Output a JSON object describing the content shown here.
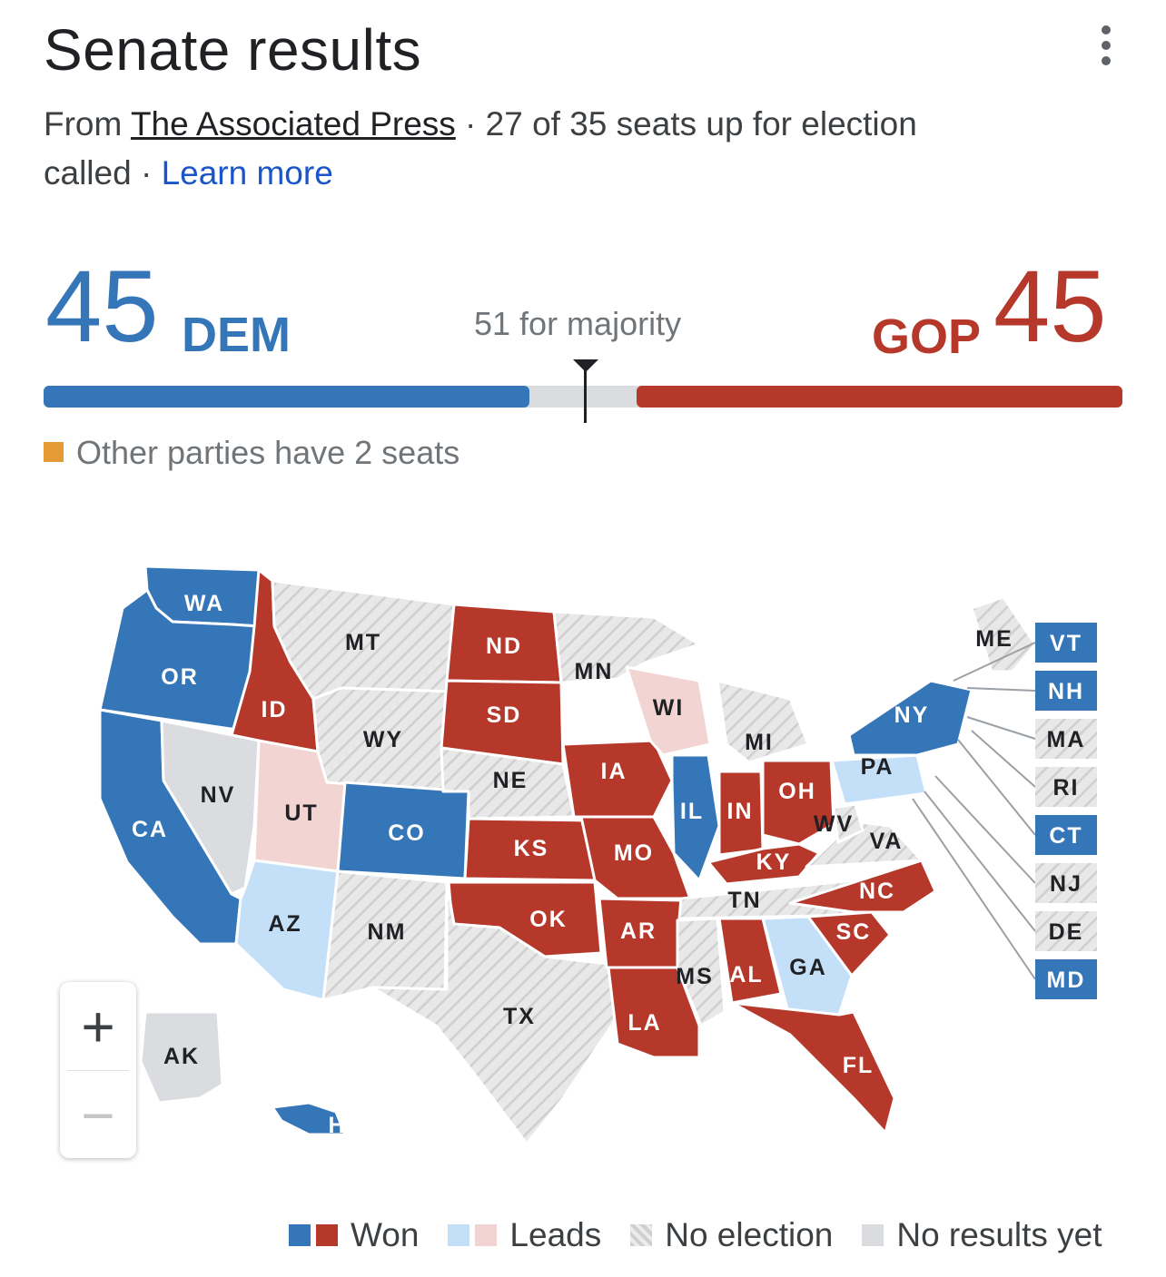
{
  "header": {
    "title": "Senate results",
    "from_prefix": "From ",
    "source": "The Associated Press",
    "summary": " · 27 of 35 seats up for election called · ",
    "learn_more": "Learn more"
  },
  "tally": {
    "dem_count": "45",
    "dem_label": "DEM",
    "majority_label": "51 for majority",
    "gop_label": "GOP",
    "gop_count": "45",
    "total_seats": 100,
    "majority": 51,
    "dem_seats": 45,
    "gop_seats": 45
  },
  "other_parties": "Other parties have 2 seats",
  "colors": {
    "dem_won": "#3576b8",
    "gop_won": "#b5382b",
    "dem_leads": "#c4e0f9",
    "gop_leads": "#f2d4d3",
    "no_results": "#dadce0",
    "no_election": "hatched",
    "other": "#e49b36"
  },
  "map": {
    "states": [
      {
        "code": "WA",
        "status": "dem_won"
      },
      {
        "code": "OR",
        "status": "dem_won"
      },
      {
        "code": "CA",
        "status": "dem_won"
      },
      {
        "code": "ID",
        "status": "gop_won"
      },
      {
        "code": "NV",
        "status": "no_results"
      },
      {
        "code": "UT",
        "status": "gop_leads"
      },
      {
        "code": "AZ",
        "status": "dem_leads"
      },
      {
        "code": "MT",
        "status": "no_election"
      },
      {
        "code": "WY",
        "status": "no_election"
      },
      {
        "code": "CO",
        "status": "dem_won"
      },
      {
        "code": "NM",
        "status": "no_election"
      },
      {
        "code": "ND",
        "status": "gop_won"
      },
      {
        "code": "SD",
        "status": "gop_won"
      },
      {
        "code": "NE",
        "status": "no_election"
      },
      {
        "code": "KS",
        "status": "gop_won"
      },
      {
        "code": "OK",
        "status": "gop_won"
      },
      {
        "code": "TX",
        "status": "no_election"
      },
      {
        "code": "MN",
        "status": "no_election"
      },
      {
        "code": "IA",
        "status": "gop_won"
      },
      {
        "code": "MO",
        "status": "gop_won"
      },
      {
        "code": "AR",
        "status": "gop_won"
      },
      {
        "code": "LA",
        "status": "gop_won"
      },
      {
        "code": "WI",
        "status": "gop_leads"
      },
      {
        "code": "IL",
        "status": "dem_won"
      },
      {
        "code": "MI",
        "status": "no_election"
      },
      {
        "code": "IN",
        "status": "gop_won"
      },
      {
        "code": "OH",
        "status": "gop_won"
      },
      {
        "code": "KY",
        "status": "gop_won"
      },
      {
        "code": "TN",
        "status": "no_election"
      },
      {
        "code": "MS",
        "status": "no_election"
      },
      {
        "code": "AL",
        "status": "gop_won"
      },
      {
        "code": "GA",
        "status": "dem_leads"
      },
      {
        "code": "FL",
        "status": "gop_won"
      },
      {
        "code": "SC",
        "status": "gop_won"
      },
      {
        "code": "NC",
        "status": "gop_won"
      },
      {
        "code": "VA",
        "status": "no_election"
      },
      {
        "code": "WV",
        "status": "no_election"
      },
      {
        "code": "PA",
        "status": "dem_leads"
      },
      {
        "code": "NY",
        "status": "dem_won"
      },
      {
        "code": "ME",
        "status": "no_election"
      },
      {
        "code": "AK",
        "status": "no_results"
      },
      {
        "code": "HI",
        "status": "dem_won"
      }
    ],
    "callouts": [
      {
        "code": "VT",
        "status": "dem_won"
      },
      {
        "code": "NH",
        "status": "dem_won"
      },
      {
        "code": "MA",
        "status": "no_election"
      },
      {
        "code": "RI",
        "status": "no_election"
      },
      {
        "code": "CT",
        "status": "dem_won"
      },
      {
        "code": "NJ",
        "status": "no_election"
      },
      {
        "code": "DE",
        "status": "no_election"
      },
      {
        "code": "MD",
        "status": "dem_won"
      }
    ]
  },
  "zoom": {
    "in_symbol": "+",
    "out_symbol": "−"
  },
  "legend": {
    "won": "Won",
    "leads": "Leads",
    "no_election": "No election",
    "no_results": "No results yet"
  }
}
